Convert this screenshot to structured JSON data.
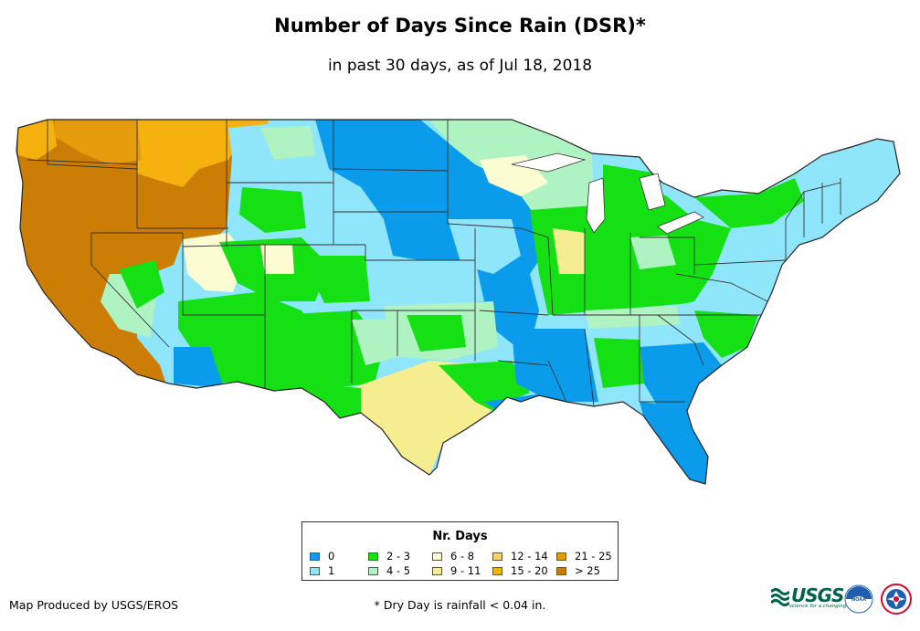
{
  "title": "Number of Days Since Rain (DSR)*",
  "subtitle": "in past 30 days, as of Jul 18, 2018",
  "legend": {
    "title": "Nr. Days",
    "items": [
      {
        "label": "0",
        "color": "#0a9bea"
      },
      {
        "label": "1",
        "color": "#8fe6fb"
      },
      {
        "label": "2 - 3",
        "color": "#14e014"
      },
      {
        "label": "4 - 5",
        "color": "#b0f3c2"
      },
      {
        "label": "6 - 8",
        "color": "#fcfbd2"
      },
      {
        "label": "9 - 11",
        "color": "#f5ed90"
      },
      {
        "label": "12 - 14",
        "color": "#f4d56a"
      },
      {
        "label": "15 - 20",
        "color": "#f5b10d"
      },
      {
        "label": "21 - 25",
        "color": "#e59c0c"
      },
      {
        "label": "> 25",
        "color": "#cc7d06"
      }
    ]
  },
  "credit": "Map Produced by USGS/EROS",
  "footnote": "* Dry Day is rainfall < 0.04 in.",
  "logos": {
    "usgs": "USGS",
    "usgs_tagline": "science for a changing world",
    "noaa": "NOAA"
  }
}
